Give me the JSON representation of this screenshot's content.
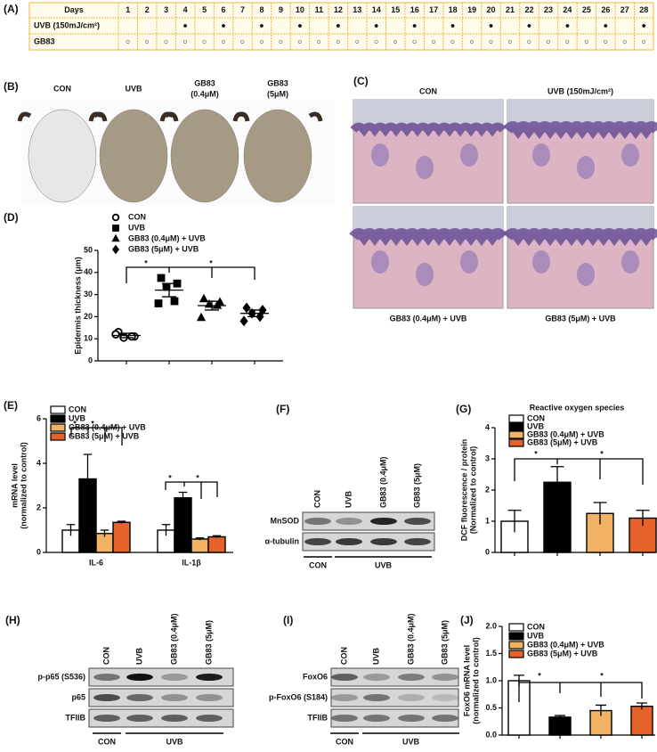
{
  "panel_a": {
    "label": "(A)",
    "header": "Days",
    "days": [
      1,
      2,
      3,
      4,
      5,
      6,
      7,
      8,
      9,
      10,
      11,
      12,
      13,
      14,
      15,
      16,
      17,
      18,
      19,
      20,
      21,
      22,
      23,
      24,
      25,
      26,
      27,
      28
    ],
    "rows": [
      {
        "name": "UVB (150mJ/cm²)",
        "marks": [
          null,
          null,
          null,
          "●",
          null,
          "●",
          null,
          "●",
          null,
          "●",
          null,
          "●",
          null,
          "●",
          null,
          "●",
          null,
          "●",
          null,
          "●",
          null,
          "●",
          null,
          "●",
          null,
          "●",
          null,
          "●"
        ]
      },
      {
        "name": "GB83",
        "marks": [
          "○",
          "○",
          "○",
          "○",
          "○",
          "○",
          "○",
          "○",
          "○",
          "○",
          "○",
          "○",
          "○",
          "○",
          "○",
          "○",
          "○",
          "○",
          "○",
          "○",
          "○",
          "○",
          "○",
          "○",
          "○",
          "○",
          "○",
          "○"
        ]
      }
    ]
  },
  "panel_b": {
    "label": "(B)",
    "groups": [
      [
        "CON"
      ],
      [
        "UVB"
      ],
      [
        "GB83",
        "(0.4μM)"
      ],
      [
        "GB83",
        "(5μM)"
      ]
    ]
  },
  "panel_c": {
    "label": "(C)",
    "columns": [
      "CON",
      "UVB (150mJ/cm²)"
    ],
    "captions": [
      "GB83 (0.4μM) + UVB",
      "GB83 (5μM) + UVB"
    ]
  },
  "panel_f": {
    "label": "(F)",
    "lanes": [
      "CON",
      "UVB",
      "GB83 (0.4μM)",
      "GB83 (5μM)"
    ],
    "rows": [
      "MnSOD",
      "α-tubulin"
    ],
    "groups": [
      "CON",
      "UVB"
    ]
  },
  "panel_h": {
    "label": "(H)",
    "lanes": [
      "CON",
      "UVB",
      "GB83 (0.4μM)",
      "GB83 (5μM)"
    ],
    "rows": [
      "p-p65 (S536)",
      "p65",
      "TFIIB"
    ],
    "groups": [
      "CON",
      "UVB"
    ]
  },
  "panel_i": {
    "label": "(I)",
    "lanes": [
      "CON",
      "UVB",
      "GB83 (0.4μM)",
      "GB83 (5μM)"
    ],
    "rows": [
      "FoxO6",
      "p-FoxO6 (S184)",
      "TFIIB"
    ],
    "groups": [
      "CON",
      "UVB"
    ]
  },
  "chart_data": [
    {
      "type": "strip",
      "panel": "(D)",
      "y_label": [
        "Epidermis thickness (μm)"
      ],
      "ylim": [
        0,
        50
      ],
      "yticks": [
        0,
        10,
        20,
        30,
        40,
        50
      ],
      "series": [
        {
          "name": "CON",
          "marker": "circle",
          "values": [
            13,
            11,
            10.5,
            11,
            12
          ],
          "mean": 11.5,
          "sem": 1
        },
        {
          "name": "UVB",
          "marker": "square",
          "values": [
            37.5,
            35,
            33.5,
            27,
            26
          ],
          "mean": 32,
          "sem": 3
        },
        {
          "name": "GB83 (0.4μM) + UVB",
          "marker": "triangle",
          "values": [
            28,
            26.5,
            25.5,
            25,
            19.5
          ],
          "mean": 25,
          "sem": 2
        },
        {
          "name": "GB83 (5μM) + UVB",
          "marker": "diamond",
          "values": [
            24,
            23,
            21.5,
            20,
            18
          ],
          "mean": 21.5,
          "sem": 1.5
        }
      ],
      "annotations": [
        "*",
        "*"
      ]
    },
    {
      "type": "bar",
      "panel": "(E)",
      "y_label": [
        "mRNA level",
        "(normalized to control)"
      ],
      "categories": [
        "IL-6",
        "IL-1β"
      ],
      "ylim": [
        0,
        6
      ],
      "yticks": [
        0,
        2,
        4,
        6
      ],
      "series": [
        {
          "name": "CON",
          "color": "#ffffff",
          "values": [
            1.0,
            1.0
          ],
          "errors": [
            0.25,
            0.25
          ]
        },
        {
          "name": "UVB",
          "color": "#000000",
          "values": [
            3.3,
            2.45
          ],
          "errors": [
            1.1,
            0.25
          ]
        },
        {
          "name": "GB83 (0.4μM) + UVB",
          "color": "#f2b266",
          "values": [
            0.85,
            0.6
          ],
          "errors": [
            0.15,
            0.05
          ]
        },
        {
          "name": "GB83 (5μM) + UVB",
          "color": "#e5622a",
          "values": [
            1.35,
            0.7
          ],
          "errors": [
            0.05,
            0.05
          ]
        }
      ],
      "annotations": [
        "*",
        "*",
        "*",
        "*"
      ]
    },
    {
      "type": "bar",
      "panel": "(G)",
      "title": "Reactive oxygen species",
      "y_label": [
        "DCF fluorescence / protein",
        "(Normalized to control)"
      ],
      "categories": [
        null
      ],
      "ylim": [
        0,
        4
      ],
      "yticks": [
        0,
        1,
        2,
        3,
        4
      ],
      "series": [
        {
          "name": "CON",
          "color": "#ffffff",
          "values": [
            1.0
          ],
          "errors": [
            0.35
          ]
        },
        {
          "name": "UVB",
          "color": "#000000",
          "values": [
            2.25
          ],
          "errors": [
            0.5
          ]
        },
        {
          "name": "GB83 (0.4μM) + UVB",
          "color": "#f2b266",
          "values": [
            1.25
          ],
          "errors": [
            0.35
          ]
        },
        {
          "name": "GB83 (5μM) + UVB",
          "color": "#e5622a",
          "values": [
            1.1
          ],
          "errors": [
            0.25
          ]
        }
      ],
      "annotations": [
        "*",
        "*"
      ]
    },
    {
      "type": "bar",
      "panel": "(J)",
      "y_label": [
        "FoxO6 mRNA level",
        "(normalized to control)"
      ],
      "categories": [
        null
      ],
      "ylim": [
        0,
        2
      ],
      "yticks": [
        {
          "value": 0,
          "label": "0.0"
        },
        0.5,
        {
          "value": 1,
          "label": "1.0"
        },
        1.5,
        {
          "value": 2,
          "label": "2.0"
        }
      ],
      "series": [
        {
          "name": "CON",
          "color": "#ffffff",
          "values": [
            1.0
          ],
          "errors": [
            0.1
          ]
        },
        {
          "name": "UVB",
          "color": "#000000",
          "values": [
            0.33
          ],
          "errors": [
            0.03
          ]
        },
        {
          "name": "GB83 (0.4μM) + UVB",
          "color": "#f2b266",
          "values": [
            0.45
          ],
          "errors": [
            0.1
          ]
        },
        {
          "name": "GB83 (5μM) + UVB",
          "color": "#e5622a",
          "values": [
            0.53
          ],
          "errors": [
            0.06
          ]
        }
      ],
      "annotations": [
        "*",
        "*"
      ]
    }
  ]
}
